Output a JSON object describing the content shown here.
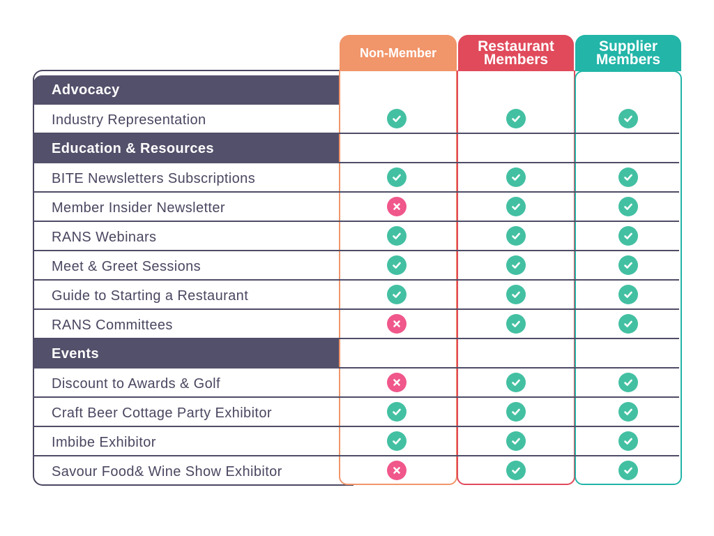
{
  "columns": [
    {
      "key": "nonmember",
      "lines": [
        "Non-Member"
      ],
      "color": "#f1956a"
    },
    {
      "key": "restaurant",
      "lines": [
        "Restaurant",
        "Members"
      ],
      "color": "#e04a5b"
    },
    {
      "key": "supplier",
      "lines": [
        "Supplier",
        "Members"
      ],
      "color": "#22b5a8"
    }
  ],
  "icons": {
    "yes": "check-circle-icon",
    "no": "x-circle-icon"
  },
  "colors": {
    "section_bg": "#53506b",
    "text": "#4a4760",
    "yes": "#43c0a2",
    "no": "#f0578b"
  },
  "rows": [
    {
      "type": "section",
      "label": "Advocacy"
    },
    {
      "type": "item",
      "label": "Industry Representation",
      "values": [
        true,
        true,
        true
      ]
    },
    {
      "type": "section",
      "label": "Education & Resources"
    },
    {
      "type": "item",
      "label": "BITE Newsletters Subscriptions",
      "values": [
        true,
        true,
        true
      ]
    },
    {
      "type": "item",
      "label": "Member Insider Newsletter",
      "values": [
        false,
        true,
        true
      ]
    },
    {
      "type": "item",
      "label": "RANS Webinars",
      "values": [
        true,
        true,
        true
      ]
    },
    {
      "type": "item",
      "label": "Meet & Greet Sessions",
      "values": [
        true,
        true,
        true
      ]
    },
    {
      "type": "item",
      "label": "Guide to Starting a Restaurant",
      "values": [
        true,
        true,
        true
      ]
    },
    {
      "type": "item",
      "label": "RANS Committees",
      "values": [
        false,
        true,
        true
      ]
    },
    {
      "type": "section",
      "label": "Events"
    },
    {
      "type": "item",
      "label": "Discount to Awards & Golf",
      "values": [
        false,
        true,
        true
      ]
    },
    {
      "type": "item",
      "label": "Craft Beer Cottage Party Exhibitor",
      "values": [
        true,
        true,
        true
      ]
    },
    {
      "type": "item",
      "label": "Imbibe Exhibitor",
      "values": [
        true,
        true,
        true
      ]
    },
    {
      "type": "item",
      "label": "Savour Food& Wine Show Exhibitor",
      "values": [
        false,
        true,
        true
      ]
    }
  ]
}
